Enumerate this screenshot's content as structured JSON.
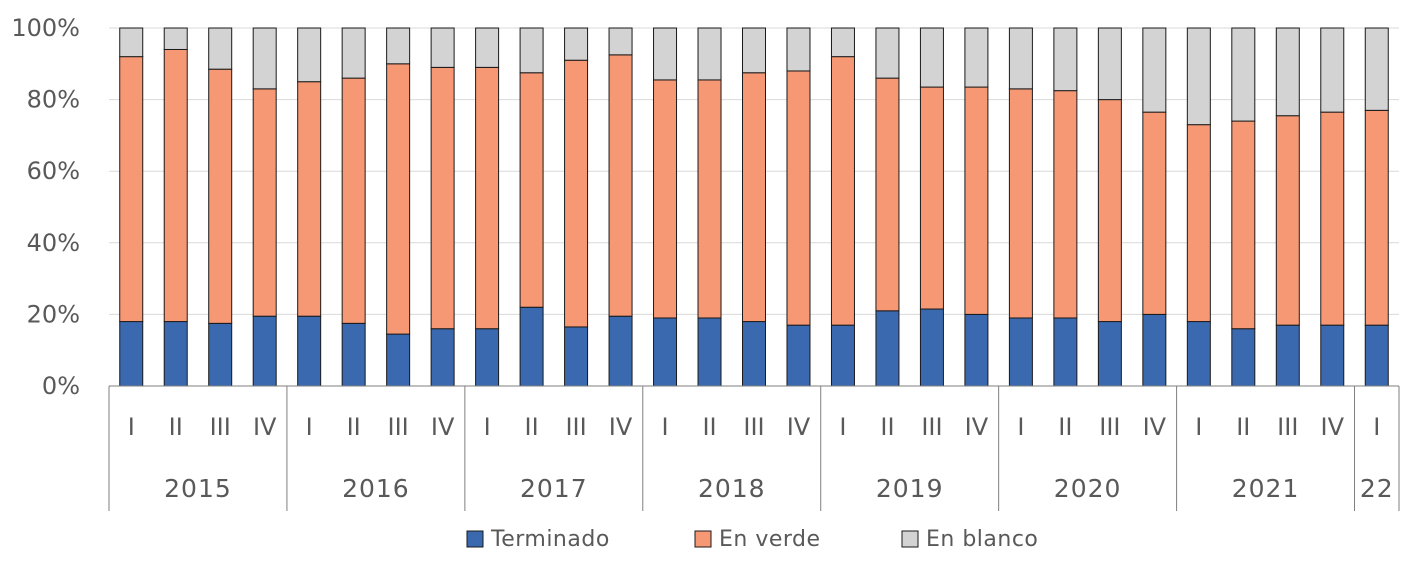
{
  "chart_data": {
    "type": "bar",
    "stacked": true,
    "percent": true,
    "ylim": [
      0,
      100
    ],
    "yticks": [
      "0%",
      "20%",
      "40%",
      "60%",
      "80%",
      "100%"
    ],
    "grid": true,
    "legend_position": "bottom",
    "categories": [
      "I",
      "II",
      "III",
      "IV",
      "I",
      "II",
      "III",
      "IV",
      "I",
      "II",
      "III",
      "IV",
      "I",
      "II",
      "III",
      "IV",
      "I",
      "II",
      "III",
      "IV",
      "I",
      "II",
      "III",
      "IV",
      "I",
      "II",
      "III",
      "IV",
      "I"
    ],
    "groups": [
      {
        "label": "2015",
        "count": 4
      },
      {
        "label": "2016",
        "count": 4
      },
      {
        "label": "2017",
        "count": 4
      },
      {
        "label": "2018",
        "count": 4
      },
      {
        "label": "2019",
        "count": 4
      },
      {
        "label": "2020",
        "count": 4
      },
      {
        "label": "2021",
        "count": 4
      },
      {
        "label": "22",
        "count": 1
      }
    ],
    "series": [
      {
        "name": "Terminado",
        "color": "#3a69b0",
        "values": [
          18,
          18,
          17.5,
          19.5,
          19.5,
          17.5,
          14.5,
          16,
          16,
          22,
          16.5,
          19.5,
          19,
          19,
          18,
          17,
          17,
          21,
          21.5,
          20,
          19,
          19,
          18,
          20,
          18,
          16,
          17,
          17,
          17
        ]
      },
      {
        "name": "En verde",
        "color": "#f79874",
        "values": [
          74,
          76,
          71,
          63.5,
          65.5,
          68.5,
          75.5,
          73,
          73,
          65.5,
          74.5,
          73,
          66.5,
          66.5,
          69.5,
          71,
          75,
          65,
          62,
          63.5,
          64,
          63.5,
          62,
          56.5,
          55,
          58,
          58.5,
          59.5,
          60
        ]
      },
      {
        "name": "En blanco",
        "color": "#d3d3d3",
        "values": [
          8,
          6,
          11.5,
          17,
          15,
          14,
          10,
          11,
          11,
          12.5,
          9,
          7.5,
          14.5,
          14.5,
          12.5,
          12,
          8,
          14,
          16.5,
          16.5,
          17,
          17.5,
          20,
          23.5,
          27,
          26,
          24.5,
          23.5,
          23
        ]
      }
    ]
  }
}
